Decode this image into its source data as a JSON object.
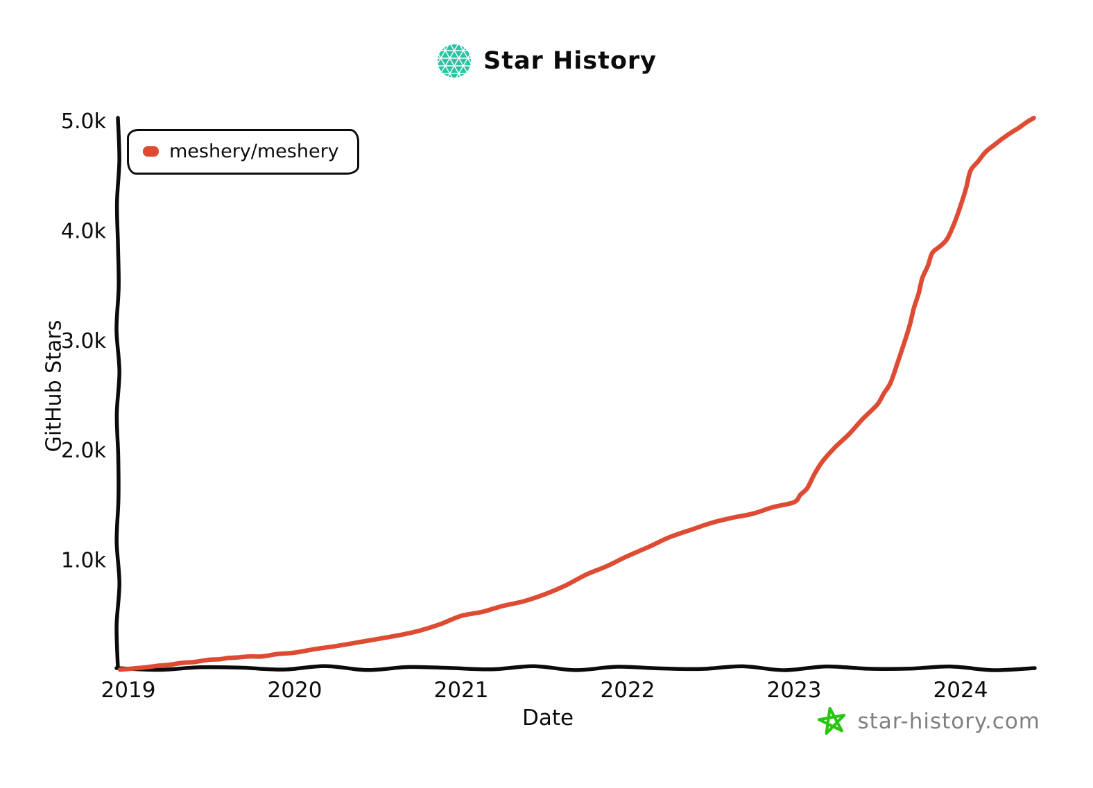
{
  "header": {
    "title": "Star History"
  },
  "legend": {
    "items": [
      {
        "label": "meshery/meshery",
        "color": "#dd4b32"
      }
    ]
  },
  "footer": {
    "site": "star-history.com"
  },
  "colors": {
    "accent_red": "#dd4b32",
    "logo_teal": "#2bc3a4",
    "logo_teal_light": "#3fd2b3",
    "footer_green": "#27c711",
    "axis_black": "#0b0b0b",
    "footer_gray": "#808080"
  },
  "chart_data": {
    "type": "line",
    "title": "Star History",
    "xlabel": "Date",
    "ylabel": "GitHub Stars",
    "grid": false,
    "legend_position": "top-left",
    "xlim": [
      2018.94,
      2024.5
    ],
    "ylim": [
      0,
      5050
    ],
    "xticks": [
      {
        "value": 2019,
        "label": "2019"
      },
      {
        "value": 2020,
        "label": "2020"
      },
      {
        "value": 2021,
        "label": "2021"
      },
      {
        "value": 2022,
        "label": "2022"
      },
      {
        "value": 2023,
        "label": "2023"
      },
      {
        "value": 2024,
        "label": "2024"
      }
    ],
    "yticks": [
      {
        "value": 1000,
        "label": "1.0k"
      },
      {
        "value": 2000,
        "label": "2.0k"
      },
      {
        "value": 3000,
        "label": "3.0k"
      },
      {
        "value": 4000,
        "label": "4.0k"
      },
      {
        "value": 5000,
        "label": "5.0k"
      }
    ],
    "series": [
      {
        "name": "meshery/meshery",
        "color": "#dd4b32",
        "points": [
          [
            2018.95,
            5
          ],
          [
            2019.1,
            25
          ],
          [
            2019.25,
            50
          ],
          [
            2019.4,
            75
          ],
          [
            2019.55,
            100
          ],
          [
            2019.65,
            115
          ],
          [
            2019.8,
            125
          ],
          [
            2020.0,
            160
          ],
          [
            2020.25,
            220
          ],
          [
            2020.5,
            285
          ],
          [
            2020.75,
            360
          ],
          [
            2021.0,
            495
          ],
          [
            2021.25,
            585
          ],
          [
            2021.5,
            690
          ],
          [
            2021.75,
            870
          ],
          [
            2022.0,
            1040
          ],
          [
            2022.25,
            1210
          ],
          [
            2022.5,
            1340
          ],
          [
            2022.75,
            1425
          ],
          [
            2023.0,
            1530
          ],
          [
            2023.08,
            1660
          ],
          [
            2023.17,
            1900
          ],
          [
            2023.33,
            2150
          ],
          [
            2023.5,
            2420
          ],
          [
            2023.58,
            2620
          ],
          [
            2023.67,
            3020
          ],
          [
            2023.72,
            3300
          ],
          [
            2023.77,
            3570
          ],
          [
            2023.83,
            3800
          ],
          [
            2023.92,
            3930
          ],
          [
            2024.0,
            4230
          ],
          [
            2024.06,
            4550
          ],
          [
            2024.15,
            4720
          ],
          [
            2024.25,
            4840
          ],
          [
            2024.35,
            4940
          ],
          [
            2024.44,
            5030
          ]
        ]
      }
    ]
  }
}
